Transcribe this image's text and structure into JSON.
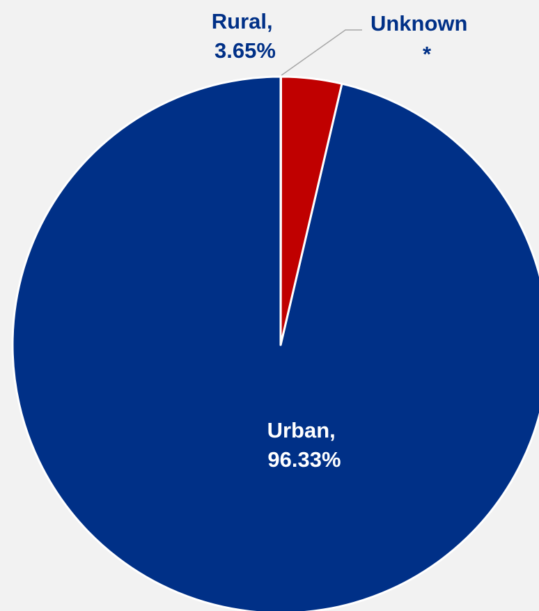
{
  "chart_data": {
    "type": "pie",
    "title": "",
    "slices": [
      {
        "name": "Urban",
        "value": 96.33,
        "label_name": "Urban,",
        "label_value": "96.33%",
        "color": "#003087",
        "label_color": "#ffffff"
      },
      {
        "name": "Rural",
        "value": 3.65,
        "label_name": "Rural,",
        "label_value": "3.65%",
        "color": "#c00000",
        "label_color": "#003087"
      },
      {
        "name": "Unknown",
        "value": 0.02,
        "label_name": "Unknown",
        "label_value": "*",
        "color": "#003087",
        "label_color": "#003087"
      }
    ],
    "start_angle_deg": 0,
    "direction": "counterclockwise",
    "slice_border_color": "#ffffff",
    "leader_line_color": "#a6a6a6",
    "background_color": "#f2f2f2"
  }
}
